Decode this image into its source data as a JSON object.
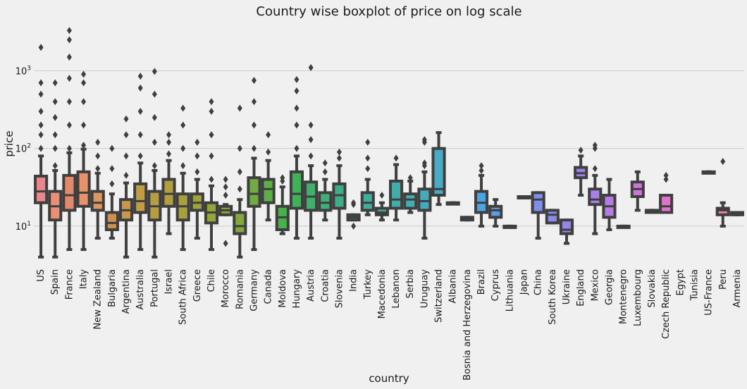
{
  "chart_data": {
    "type": "box",
    "title": "Country wise boxplot of price on log scale",
    "xlabel": "country",
    "ylabel": "price",
    "yscale": "log",
    "ylim": [
      3.3,
      4000
    ],
    "yticks": [
      {
        "value": 10,
        "base": "10",
        "exp": "1"
      },
      {
        "value": 100,
        "base": "10",
        "exp": "2"
      },
      {
        "value": 1000,
        "base": "10",
        "exp": "3"
      }
    ],
    "grid": "horizontal",
    "categories": [
      {
        "name": "US",
        "color": "#e9878d",
        "q1": 20,
        "median": 28,
        "q3": 44,
        "whisker_low": 4,
        "whisker_high": 80,
        "outliers": [
          100,
          150,
          200,
          300,
          500,
          700,
          2000
        ]
      },
      {
        "name": "Spain",
        "color": "#e88f78",
        "q1": 12,
        "median": 18,
        "q3": 28,
        "whisker_low": 4,
        "whisker_high": 52,
        "outliers": [
          60,
          100,
          150,
          250,
          400,
          700
        ]
      },
      {
        "name": "France",
        "color": "#e48a6c",
        "q1": 16,
        "median": 25,
        "q3": 45,
        "whisker_low": 5,
        "whisker_high": 88,
        "outliers": [
          100,
          200,
          400,
          800,
          1500,
          2500,
          3300
        ]
      },
      {
        "name": "Italy",
        "color": "#e9926a",
        "q1": 18,
        "median": 27,
        "q3": 50,
        "whisker_low": 5,
        "whisker_high": 98,
        "outliers": [
          110,
          200,
          400,
          700,
          900
        ]
      },
      {
        "name": "New Zealand",
        "color": "#dd9660",
        "q1": 16,
        "median": 20,
        "q3": 28,
        "whisker_low": 7,
        "whisker_high": 48,
        "outliers": [
          55,
          80,
          120
        ]
      },
      {
        "name": "Bulgaria",
        "color": "#cf8f4f",
        "q1": 9,
        "median": 11,
        "q3": 15,
        "whisker_low": 7,
        "whisker_high": 26,
        "outliers": [
          35,
          55,
          100
        ]
      },
      {
        "name": "Argentina",
        "color": "#c9964d",
        "q1": 12,
        "median": 16,
        "q3": 22,
        "whisker_low": 4,
        "whisker_high": 36,
        "outliers": [
          45,
          80,
          150,
          240
        ]
      },
      {
        "name": "Australia",
        "color": "#c29b45",
        "q1": 15,
        "median": 21,
        "q3": 35,
        "whisker_low": 5,
        "whisker_high": 65,
        "outliers": [
          80,
          150,
          300,
          600,
          850
        ]
      },
      {
        "name": "Portugal",
        "color": "#b89c43",
        "q1": 12,
        "median": 18,
        "q3": 28,
        "whisker_low": 4,
        "whisker_high": 52,
        "outliers": [
          60,
          120,
          250,
          500,
          980
        ]
      },
      {
        "name": "Israel",
        "color": "#b19e3f",
        "q1": 18,
        "median": 26,
        "q3": 40,
        "whisker_low": 8,
        "whisker_high": 70,
        "outliers": [
          85,
          120,
          150
        ]
      },
      {
        "name": "South Africa",
        "color": "#a89f3d",
        "q1": 12,
        "median": 18,
        "q3": 26,
        "whisker_low": 5,
        "whisker_high": 48,
        "outliers": [
          60,
          100,
          200,
          330
        ]
      },
      {
        "name": "Greece",
        "color": "#9ea23c",
        "q1": 16,
        "median": 20,
        "q3": 26,
        "whisker_low": 7,
        "whisker_high": 40,
        "outliers": [
          50,
          80,
          120
        ]
      },
      {
        "name": "Chile",
        "color": "#95a53c",
        "q1": 11,
        "median": 15,
        "q3": 20,
        "whisker_low": 5,
        "whisker_high": 33,
        "outliers": [
          40,
          80,
          150,
          300,
          400
        ]
      },
      {
        "name": "Morocco",
        "color": "#8ea73d",
        "q1": 14,
        "median": 16,
        "q3": 18,
        "whisker_low": 14,
        "whisker_high": 19,
        "outliers": [
          6,
          25,
          32,
          40
        ]
      },
      {
        "name": "Romania",
        "color": "#84a83e",
        "q1": 8,
        "median": 10,
        "q3": 15,
        "whisker_low": 4,
        "whisker_high": 22,
        "outliers": [
          30,
          50,
          100,
          330
        ]
      },
      {
        "name": "Germany",
        "color": "#6fab42",
        "q1": 18,
        "median": 26,
        "q3": 42,
        "whisker_low": 5,
        "whisker_high": 75,
        "outliers": [
          100,
          200,
          400,
          750
        ]
      },
      {
        "name": "Canada",
        "color": "#5dae47",
        "q1": 20,
        "median": 30,
        "q3": 40,
        "whisker_low": 12,
        "whisker_high": 70,
        "outliers": [
          90,
          150
        ]
      },
      {
        "name": "Moldova",
        "color": "#47b14c",
        "q1": 9,
        "median": 13,
        "q3": 18,
        "whisker_low": 8,
        "whisker_high": 32,
        "outliers": [
          38,
          42
        ]
      },
      {
        "name": "Hungary",
        "color": "#3fb259",
        "q1": 17,
        "median": 26,
        "q3": 50,
        "whisker_low": 7,
        "whisker_high": 80,
        "outliers": [
          100,
          200,
          330,
          550,
          770
        ]
      },
      {
        "name": "Austria",
        "color": "#3eb06a",
        "q1": 16,
        "median": 24,
        "q3": 37,
        "whisker_low": 7,
        "whisker_high": 60,
        "outliers": [
          80,
          130,
          200,
          1100
        ]
      },
      {
        "name": "Croatia",
        "color": "#3eaf79",
        "q1": 16,
        "median": 20,
        "q3": 27,
        "whisker_low": 12,
        "whisker_high": 40,
        "outliers": [
          50,
          65
        ]
      },
      {
        "name": "Slovenia",
        "color": "#3fae86",
        "q1": 17,
        "median": 25,
        "q3": 35,
        "whisker_low": 7,
        "whisker_high": 60,
        "outliers": [
          75,
          90
        ]
      },
      {
        "name": "India",
        "color": "#40ad91",
        "q1": 12,
        "median": 13,
        "q3": 14,
        "whisker_low": 12,
        "whisker_high": 14,
        "outliers": [
          10,
          19,
          20
        ]
      },
      {
        "name": "Turkey",
        "color": "#41ad9b",
        "q1": 16,
        "median": 20,
        "q3": 27,
        "whisker_low": 14,
        "whisker_high": 40,
        "outliers": [
          55,
          75,
          120
        ]
      },
      {
        "name": "Macedonia",
        "color": "#42aca3",
        "q1": 14,
        "median": 15,
        "q3": 17,
        "whisker_low": 12,
        "whisker_high": 20,
        "outliers": [
          25
        ]
      },
      {
        "name": "Lebanon",
        "color": "#43acab",
        "q1": 17,
        "median": 22,
        "q3": 38,
        "whisker_low": 12,
        "whisker_high": 62,
        "outliers": [
          75
        ]
      },
      {
        "name": "Serbia",
        "color": "#44acb3",
        "q1": 17,
        "median": 22,
        "q3": 26,
        "whisker_low": 15,
        "whisker_high": 38,
        "outliers": [
          42
        ]
      },
      {
        "name": "Uruguay",
        "color": "#45abbc",
        "q1": 16,
        "median": 21,
        "q3": 30,
        "whisker_low": 7,
        "whisker_high": 50,
        "outliers": [
          60,
          65,
          120,
          130
        ]
      },
      {
        "name": "Switzerland",
        "color": "#47abc6",
        "q1": 25,
        "median": 30,
        "q3": 100,
        "whisker_low": 19,
        "whisker_high": 160,
        "outliers": []
      },
      {
        "name": "Albania",
        "color": "#49a9d0",
        "q1": 20,
        "median": 20,
        "q3": 20,
        "whisker_low": 20,
        "whisker_high": 20,
        "outliers": []
      },
      {
        "name": "Bosnia and Herzegovina",
        "color": "#4aa6db",
        "q1": 12,
        "median": 13,
        "q3": 13,
        "whisker_low": 12,
        "whisker_high": 13,
        "outliers": []
      },
      {
        "name": "Brazil",
        "color": "#4da2e0",
        "q1": 15,
        "median": 20,
        "q3": 28,
        "whisker_low": 10,
        "whisker_high": 45,
        "outliers": [
          52,
          60
        ]
      },
      {
        "name": "Cyprus",
        "color": "#5d9ce3",
        "q1": 13,
        "median": 16,
        "q3": 18,
        "whisker_low": 10,
        "whisker_high": 22,
        "outliers": []
      },
      {
        "name": "Lithuania",
        "color": "#6a98e6",
        "q1": 10,
        "median": 10,
        "q3": 10,
        "whisker_low": 10,
        "whisker_high": 10,
        "outliers": []
      },
      {
        "name": "Japan",
        "color": "#7493e8",
        "q1": 24,
        "median": 24,
        "q3": 24,
        "whisker_low": 24,
        "whisker_high": 24,
        "outliers": []
      },
      {
        "name": "China",
        "color": "#7e8fea",
        "q1": 15,
        "median": 22,
        "q3": 27,
        "whisker_low": 7,
        "whisker_high": 27,
        "outliers": []
      },
      {
        "name": "South Korea",
        "color": "#888bea",
        "q1": 11,
        "median": 14,
        "q3": 16,
        "whisker_low": 11,
        "whisker_high": 16,
        "outliers": []
      },
      {
        "name": "Ukraine",
        "color": "#9287ea",
        "q1": 8,
        "median": 9,
        "q3": 12,
        "whisker_low": 6,
        "whisker_high": 12,
        "outliers": []
      },
      {
        "name": "England",
        "color": "#9d83e8",
        "q1": 42,
        "median": 48,
        "q3": 57,
        "whisker_low": 25,
        "whisker_high": 80,
        "outliers": [
          95
        ]
      },
      {
        "name": "Mexico",
        "color": "#a880e6",
        "q1": 19,
        "median": 22,
        "q3": 30,
        "whisker_low": 8,
        "whisker_high": 45,
        "outliers": [
          55,
          100,
          110
        ]
      },
      {
        "name": "Georgia",
        "color": "#b57ce3",
        "q1": 13,
        "median": 18,
        "q3": 25,
        "whisker_low": 9,
        "whisker_high": 40,
        "outliers": []
      },
      {
        "name": "Montenegro",
        "color": "#c278e0",
        "q1": 10,
        "median": 10,
        "q3": 10,
        "whisker_low": 10,
        "whisker_high": 10,
        "outliers": []
      },
      {
        "name": "Luxembourg",
        "color": "#cf74dc",
        "q1": 24,
        "median": 30,
        "q3": 37,
        "whisker_low": 16,
        "whisker_high": 50,
        "outliers": []
      },
      {
        "name": "Slovakia",
        "color": "#da72d5",
        "q1": 15,
        "median": 16,
        "q3": 16,
        "whisker_low": 15,
        "whisker_high": 16,
        "outliers": []
      },
      {
        "name": "Czech Republic",
        "color": "#e273cc",
        "q1": 15,
        "median": 18,
        "q3": 25,
        "whisker_low": 15,
        "whisker_high": 25,
        "outliers": [
          40,
          45
        ]
      },
      {
        "name": "Egypt",
        "color": "#e874c4",
        "q1": null,
        "median": null,
        "q3": null,
        "whisker_low": null,
        "whisker_high": null,
        "outliers": []
      },
      {
        "name": "Tunisia",
        "color": "#ea76bc",
        "q1": null,
        "median": null,
        "q3": null,
        "whisker_low": null,
        "whisker_high": null,
        "outliers": []
      },
      {
        "name": "US-France",
        "color": "#ec79b3",
        "q1": 50,
        "median": 50,
        "q3": 50,
        "whisker_low": 50,
        "whisker_high": 50,
        "outliers": []
      },
      {
        "name": "Peru",
        "color": "#ee7dac",
        "q1": 14,
        "median": 16,
        "q3": 17,
        "whisker_low": 10,
        "whisker_high": 20,
        "outliers": [
          68
        ]
      },
      {
        "name": "Armenia",
        "color": "#f081a6",
        "q1": 14,
        "median": 15,
        "q3": 15,
        "whisker_low": 14,
        "whisker_high": 15,
        "outliers": []
      }
    ]
  }
}
